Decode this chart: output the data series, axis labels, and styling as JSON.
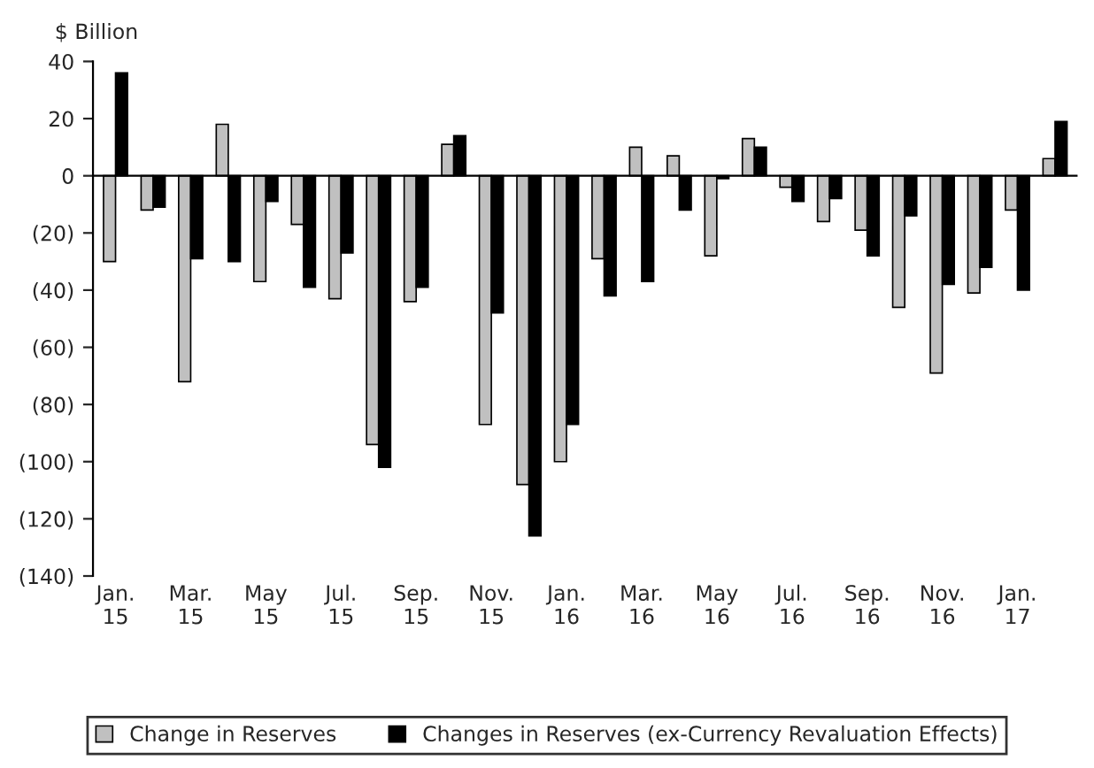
{
  "chart_data": {
    "type": "bar",
    "ylabel": "$ Billion",
    "categories": [
      "Jan.\n15",
      null,
      "Mar.\n15",
      null,
      "May\n15",
      null,
      "Jul.\n15",
      null,
      "Sep.\n15",
      null,
      "Nov.\n15",
      null,
      "Jan.\n16",
      null,
      "Mar.\n16",
      null,
      "May\n16",
      null,
      "Jul.\n16",
      null,
      "Sep.\n16",
      null,
      "Nov.\n16",
      null,
      "Jan.\n17",
      null
    ],
    "series": [
      {
        "name": "Change in Reserves",
        "color": "#c0c0c0",
        "values": [
          -30,
          -12,
          -72,
          18,
          -37,
          -17,
          -43,
          -94,
          -44,
          11,
          -87,
          -108,
          -100,
          -29,
          10,
          7,
          -28,
          13,
          -4,
          -16,
          -19,
          -46,
          -69,
          -41,
          -12,
          6
        ]
      },
      {
        "name": "Changes in Reserves (ex-Currency Revaluation Effects)",
        "color": "#000000",
        "values": [
          36,
          -11,
          -29,
          -30,
          -9,
          -39,
          -27,
          -102,
          -39,
          14,
          -48,
          -126,
          -87,
          -42,
          -37,
          -12,
          -1,
          10,
          -9,
          -8,
          -28,
          -14,
          -38,
          -32,
          -40,
          19
        ]
      }
    ],
    "ylim": [
      -140,
      40
    ],
    "yticks": [
      {
        "value": -140,
        "label": "(140)"
      },
      {
        "value": -120,
        "label": "(120)"
      },
      {
        "value": -100,
        "label": "(100)"
      },
      {
        "value": -80,
        "label": "(80)"
      },
      {
        "value": -60,
        "label": "(60)"
      },
      {
        "value": -40,
        "label": "(40)"
      },
      {
        "value": -20,
        "label": "(20)"
      },
      0,
      20,
      40
    ],
    "legend": "bottom"
  }
}
